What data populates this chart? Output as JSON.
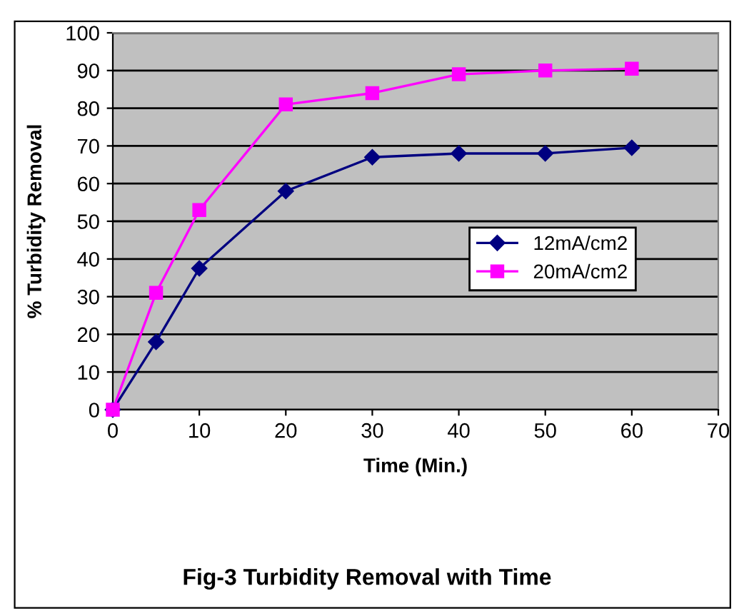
{
  "chart_data": {
    "type": "line",
    "title": "Fig-3 Turbidity Removal with Time",
    "xlabel": "Time (Min.)",
    "ylabel": "% Turbidity Removal",
    "x": [
      0,
      5,
      10,
      20,
      30,
      40,
      50,
      60
    ],
    "series": [
      {
        "name": "12mA/cm2",
        "color": "#000080",
        "marker": "diamond",
        "values": [
          0,
          18,
          37.5,
          58,
          67,
          68,
          68,
          69.5
        ]
      },
      {
        "name": "20mA/cm2",
        "color": "#ff00ff",
        "marker": "square",
        "values": [
          0,
          31,
          53,
          81,
          84,
          89,
          90,
          90.5
        ]
      }
    ],
    "xlim": [
      0,
      70
    ],
    "xticks": [
      0,
      10,
      20,
      30,
      40,
      50,
      60,
      70
    ],
    "ylim": [
      0,
      100
    ],
    "yticks": [
      0,
      10,
      20,
      30,
      40,
      50,
      60,
      70,
      80,
      90,
      100
    ],
    "grid": "y",
    "legend": "right",
    "line_style": "solid"
  }
}
